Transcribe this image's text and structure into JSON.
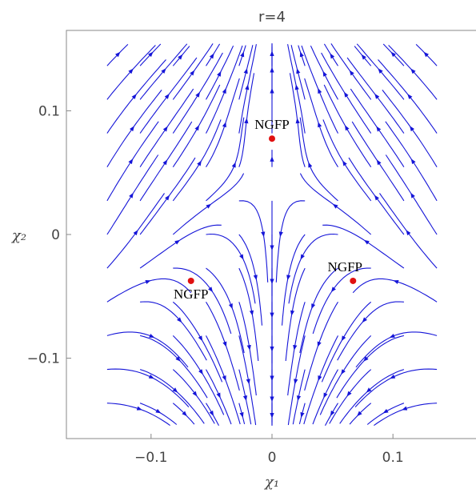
{
  "chart_data": {
    "type": "stream",
    "title": "r=4",
    "xlabel": "χ₁",
    "ylabel": "χ₂",
    "xlim": [
      -0.17,
      0.17
    ],
    "ylim": [
      -0.165,
      0.165
    ],
    "x_ticks": [
      {
        "value": -0.1,
        "label": "−0.1"
      },
      {
        "value": 0,
        "label": "0"
      },
      {
        "value": 0.1,
        "label": "0.1"
      }
    ],
    "y_ticks": [
      {
        "value": -0.1,
        "label": "−0.1"
      },
      {
        "value": 0,
        "label": "0"
      },
      {
        "value": 0.1,
        "label": "0.1"
      }
    ],
    "fixed_points": [
      {
        "label": "NGFP",
        "x": 0.0,
        "y": 0.0775
      },
      {
        "label": "NGFP",
        "x": -0.067,
        "y": -0.0375
      },
      {
        "label": "NGFP",
        "x": 0.067,
        "y": -0.0375
      }
    ],
    "stream_range": [
      -0.15,
      0.15
    ],
    "grid": false
  },
  "colors": {
    "stream": "#1515d8",
    "fixed_point": "#e01010",
    "frame": "#888888",
    "text": "#444444"
  }
}
